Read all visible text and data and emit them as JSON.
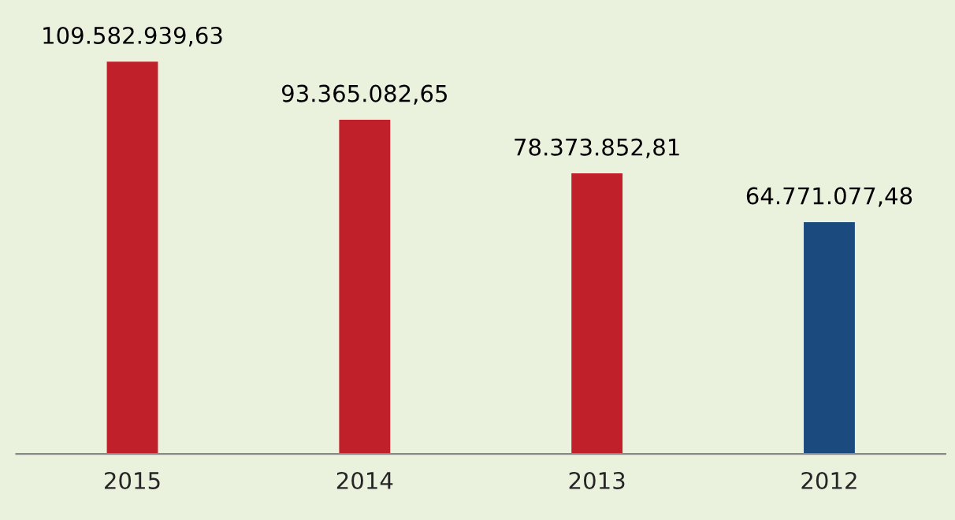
{
  "chart_data": {
    "type": "bar",
    "categories": [
      "2015",
      "2014",
      "2013",
      "2012"
    ],
    "values": [
      109582939.63,
      93365082.65,
      78373852.81,
      64771077.48
    ],
    "colors": [
      "#c0202a",
      "#c0202a",
      "#c0202a",
      "#1b4a7e"
    ],
    "value_labels": [
      "109.582.939,63",
      "93.365.082,65",
      "78.373.852,81",
      "64.771.077,48"
    ],
    "grid": false,
    "legend": false
  }
}
